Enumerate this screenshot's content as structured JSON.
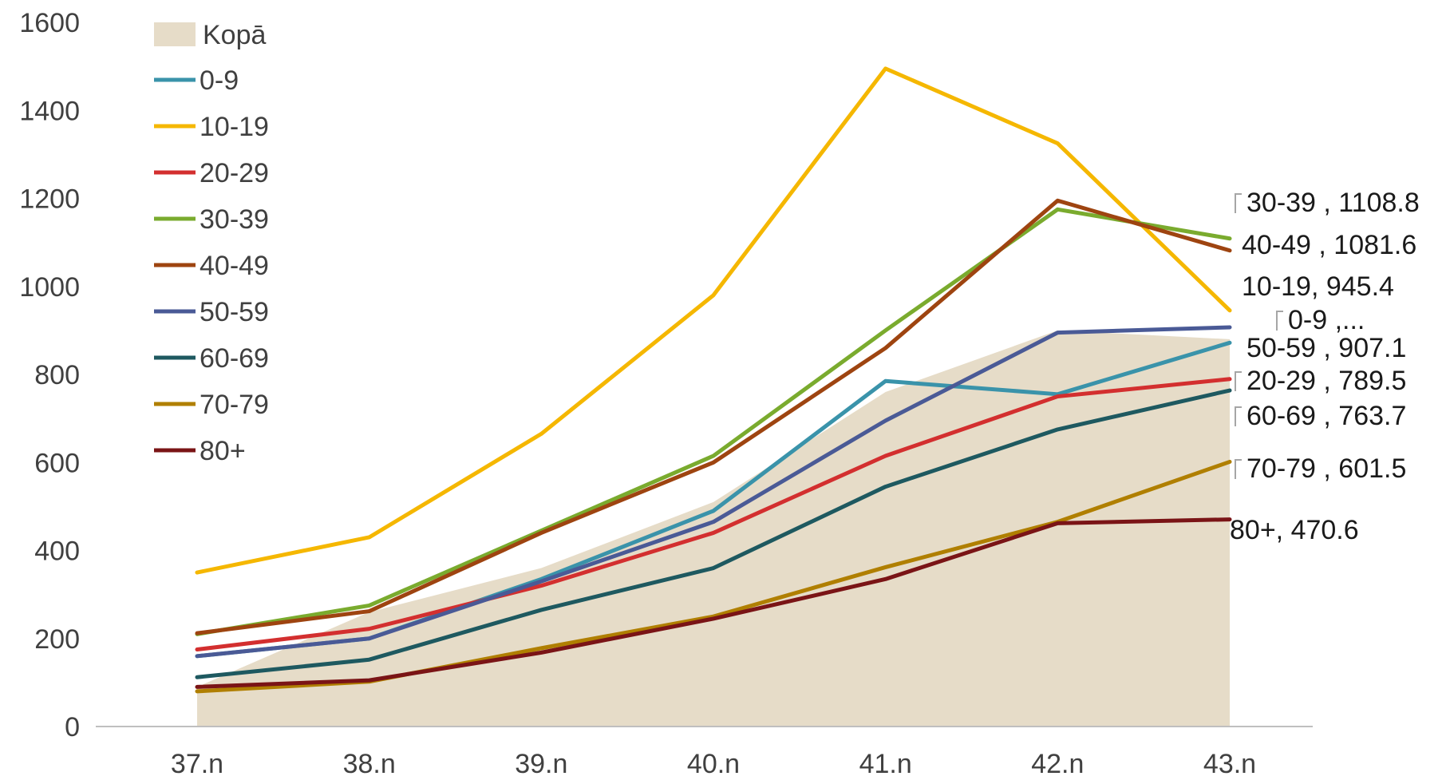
{
  "chart_data": {
    "type": "line",
    "categories": [
      "37.n",
      "38.n",
      "39.n",
      "40.n",
      "41.n",
      "42.n",
      "43.n"
    ],
    "ylim": [
      0,
      1600
    ],
    "yticks": [
      0,
      200,
      400,
      600,
      800,
      1000,
      1200,
      1400,
      1600
    ],
    "grid": false,
    "legend_position": "top-left",
    "area": {
      "name": "Kopā",
      "color": "#e6dcc8",
      "values": [
        90,
        260,
        360,
        510,
        760,
        900,
        880
      ]
    },
    "series": [
      {
        "name": "0-9",
        "color": "#3a93aa",
        "values": [
          160,
          200,
          335,
          490,
          785,
          755,
          872
        ],
        "end_label": "0-9 ,..."
      },
      {
        "name": "10-19",
        "color": "#f5b700",
        "values": [
          350,
          430,
          665,
          980,
          1495,
          1325,
          945.4
        ],
        "end_label": "10-19, 945.4"
      },
      {
        "name": "20-29",
        "color": "#d32f2f",
        "values": [
          175,
          222,
          320,
          440,
          615,
          750,
          789.5
        ],
        "end_label": "20-29 , 789.5"
      },
      {
        "name": "30-39",
        "color": "#7aab2e",
        "values": [
          210,
          275,
          445,
          615,
          900,
          1175,
          1108.8
        ],
        "end_label": "30-39 , 1108.8"
      },
      {
        "name": "40-49",
        "color": "#9e4410",
        "values": [
          212,
          262,
          440,
          600,
          860,
          1195,
          1081.6
        ],
        "end_label": "40-49 , 1081.6"
      },
      {
        "name": "50-59",
        "color": "#4a5a96",
        "values": [
          160,
          200,
          330,
          465,
          695,
          895,
          907.1
        ],
        "end_label": "50-59 , 907.1"
      },
      {
        "name": "60-69",
        "color": "#1e5960",
        "values": [
          112,
          152,
          265,
          360,
          545,
          675,
          763.7
        ],
        "end_label": "60-69 , 763.7"
      },
      {
        "name": "70-79",
        "color": "#b07f00",
        "values": [
          80,
          102,
          178,
          250,
          362,
          465,
          601.5
        ],
        "end_label": "70-79 , 601.5"
      },
      {
        "name": "80+",
        "color": "#7a1416",
        "values": [
          90,
          105,
          168,
          245,
          335,
          462,
          470.6
        ],
        "end_label": "80+, 470.6"
      }
    ]
  }
}
